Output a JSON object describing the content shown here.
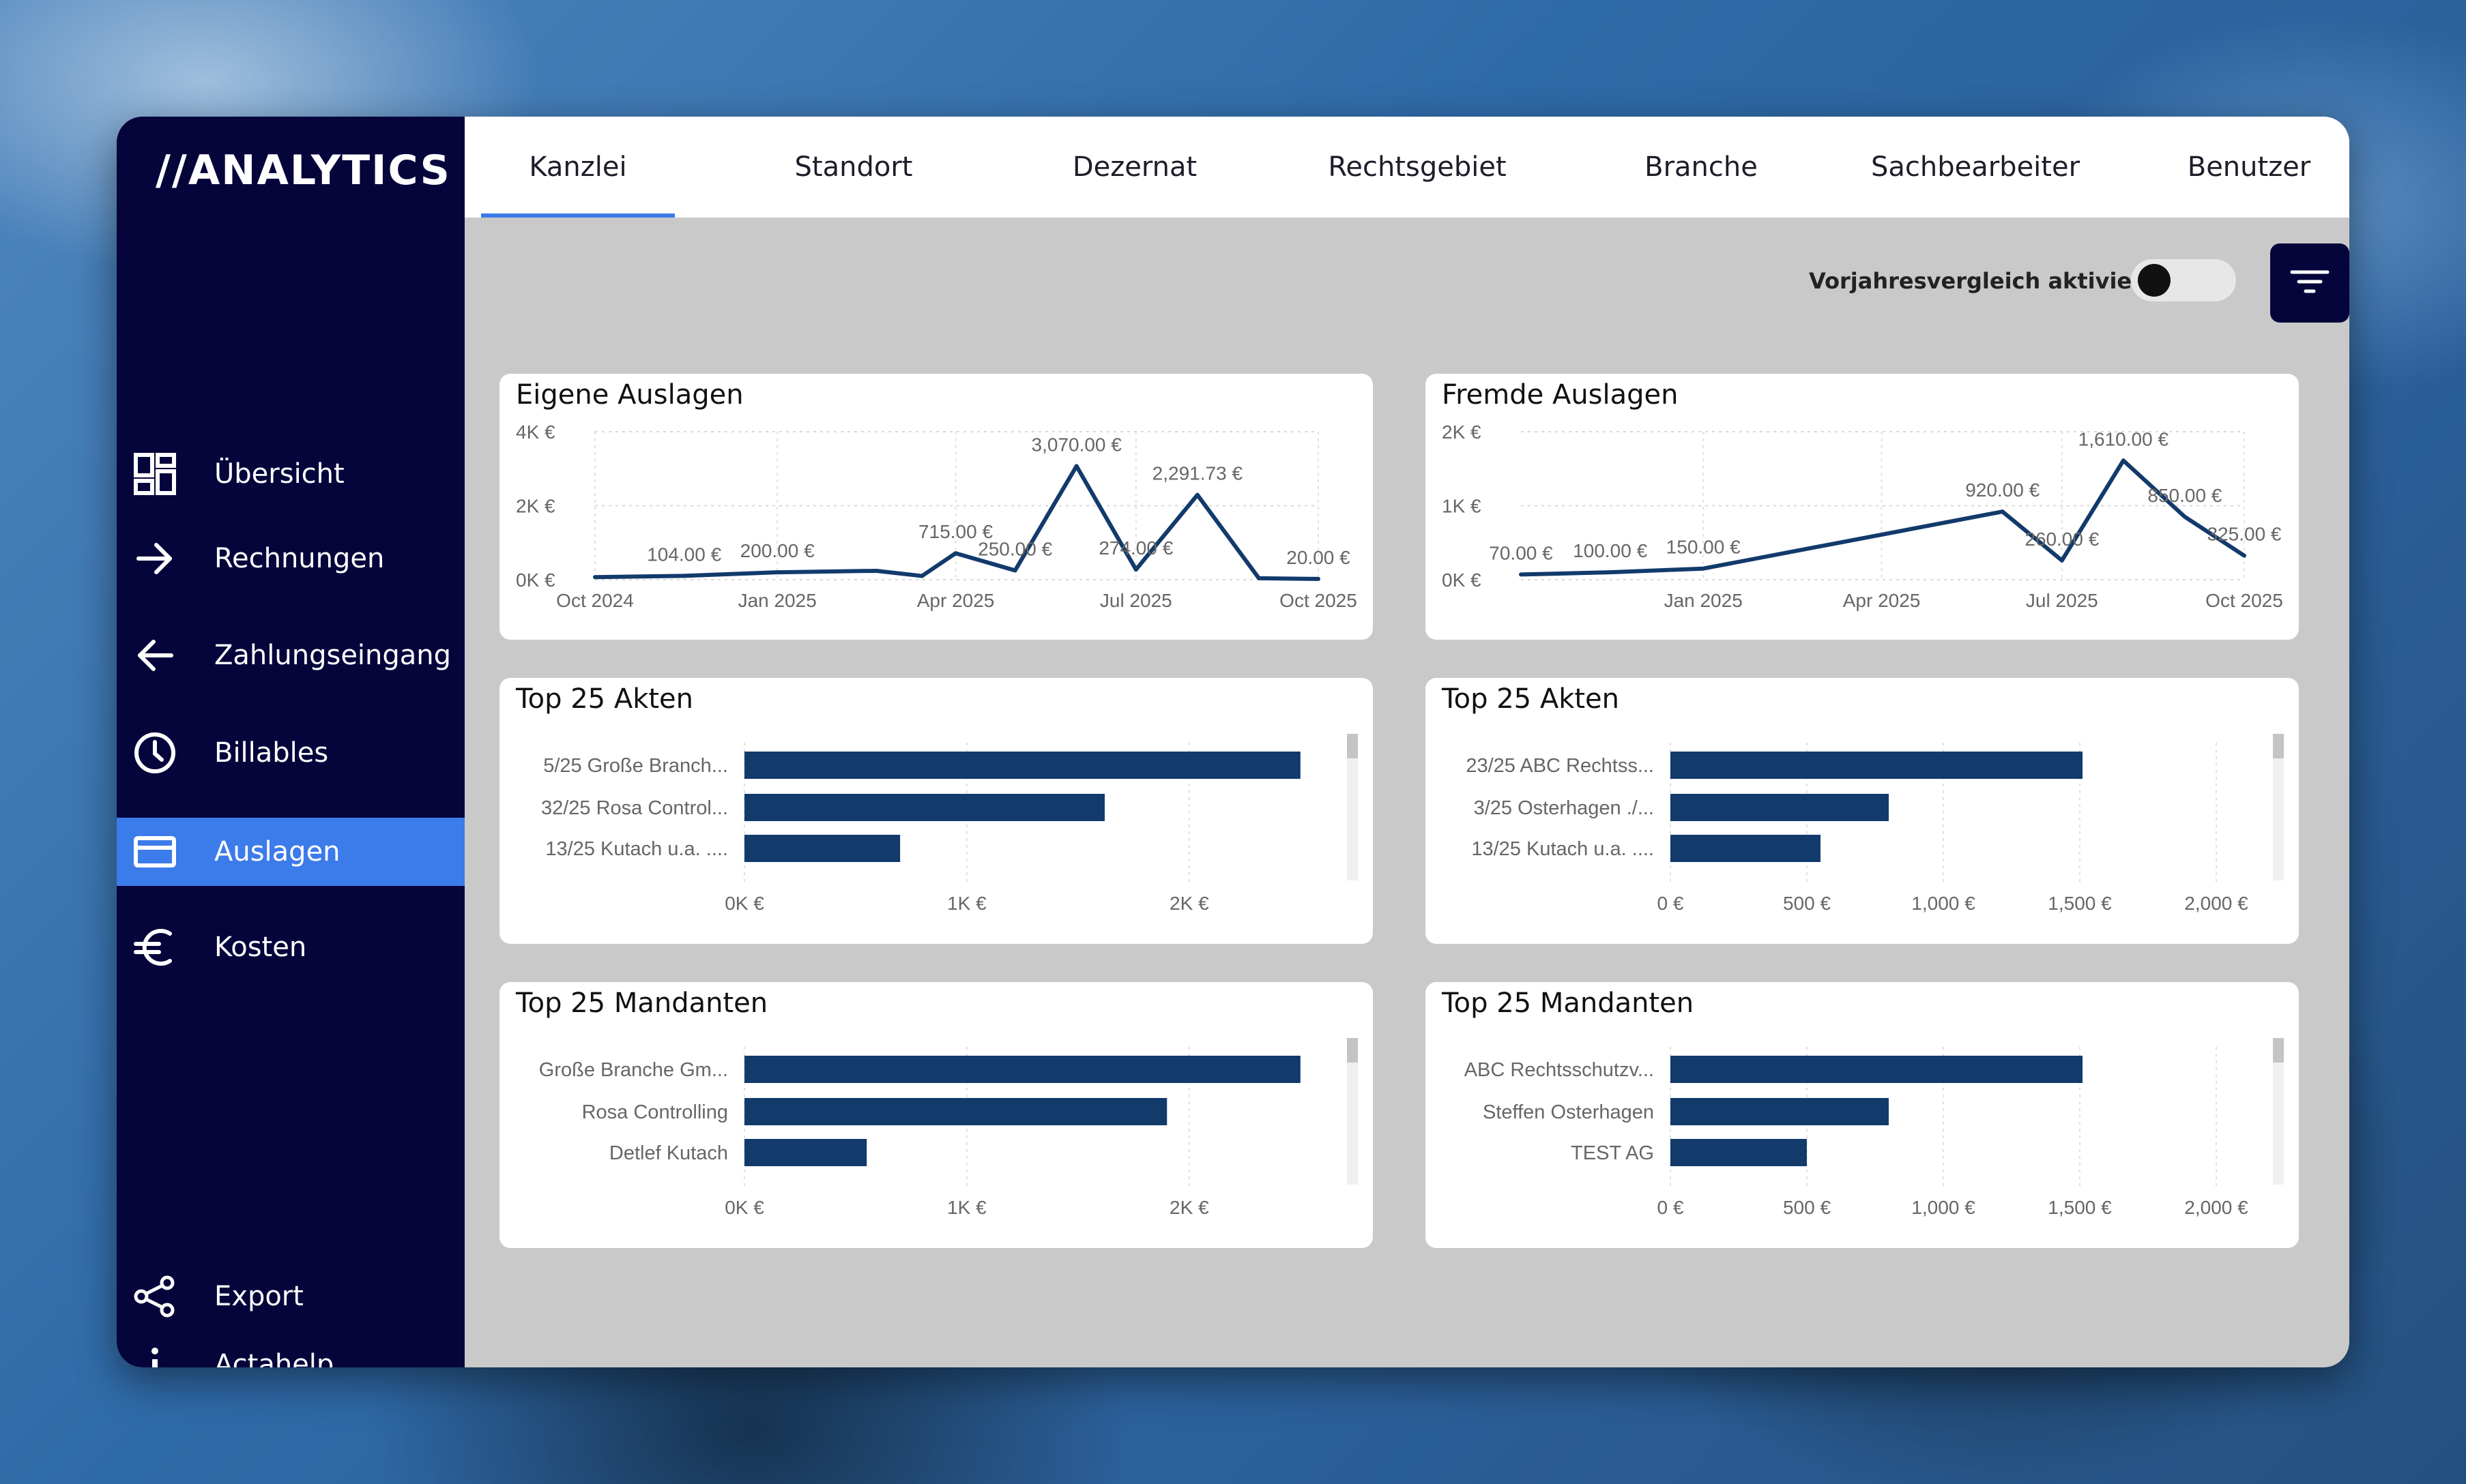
{
  "app": {
    "logo": "//ANALYTICS"
  },
  "sidebar": {
    "items": [
      {
        "label": "Übersicht",
        "icon": "dashboard-icon"
      },
      {
        "label": "Rechnungen",
        "icon": "arrow-right-icon"
      },
      {
        "label": "Zahlungseingang",
        "icon": "arrow-left-icon"
      },
      {
        "label": "Billables",
        "icon": "clock-icon"
      },
      {
        "label": "Auslagen",
        "icon": "credit-card-icon",
        "active": true
      },
      {
        "label": "Kosten",
        "icon": "euro-icon"
      }
    ],
    "bottom": [
      {
        "label": "Export",
        "icon": "share-icon"
      },
      {
        "label": "Actahelp",
        "icon": "info-icon"
      }
    ]
  },
  "tabs": [
    "Kanzlei",
    "Standort",
    "Dezernat",
    "Rechtsgebiet",
    "Branche",
    "Sachbearbeiter",
    "Benutzer"
  ],
  "active_tab": "Kanzlei",
  "toolbar": {
    "toggle_label": "Vorjahresvergleich aktivieren",
    "toggle_on": false
  },
  "colors": {
    "sidebar": "#06053b",
    "accent": "#3c7bea",
    "series": "#123a6b",
    "panel_bg": "#c9c9c9"
  },
  "chart_data": [
    {
      "type": "line",
      "title": "Eigene Auslagen",
      "x_ticks": [
        "Oct 2024",
        "Jan 2025",
        "Apr 2025",
        "Jul 2025",
        "Oct 2025"
      ],
      "y_ticks": [
        "0K €",
        "2K €",
        "4K €"
      ],
      "ylim": [
        0,
        4000
      ],
      "grid": true,
      "points": [
        {
          "x": "2024-10-01",
          "y": 70,
          "label": ""
        },
        {
          "x": "2024-11-15",
          "y": 104,
          "label": "104.00 €"
        },
        {
          "x": "2025-01-01",
          "y": 200,
          "label": "200.00 €"
        },
        {
          "x": "2025-02-20",
          "y": 240,
          "label": ""
        },
        {
          "x": "2025-03-15",
          "y": 100,
          "label": ""
        },
        {
          "x": "2025-04-01",
          "y": 715,
          "label": "715.00 €"
        },
        {
          "x": "2025-05-01",
          "y": 250,
          "label": "250.00 €"
        },
        {
          "x": "2025-06-01",
          "y": 3070,
          "label": "3,070.00 €"
        },
        {
          "x": "2025-07-01",
          "y": 274,
          "label": "274.00 €"
        },
        {
          "x": "2025-08-01",
          "y": 2291.73,
          "label": "2,291.73 €"
        },
        {
          "x": "2025-09-01",
          "y": 40,
          "label": ""
        },
        {
          "x": "2025-10-01",
          "y": 20,
          "label": "20.00 €"
        }
      ]
    },
    {
      "type": "line",
      "title": "Fremde Auslagen",
      "x_ticks": [
        "Jan 2025",
        "Apr 2025",
        "Jul 2025",
        "Oct 2025"
      ],
      "y_ticks": [
        "0K €",
        "1K €",
        "2K €"
      ],
      "ylim": [
        0,
        2000
      ],
      "grid": true,
      "points": [
        {
          "x": "2024-10-01",
          "y": 70,
          "label": "70.00 €"
        },
        {
          "x": "2024-11-15",
          "y": 100,
          "label": "100.00 €"
        },
        {
          "x": "2025-01-01",
          "y": 150,
          "label": "150.00 €"
        },
        {
          "x": "2025-06-01",
          "y": 920,
          "label": "920.00 €"
        },
        {
          "x": "2025-07-01",
          "y": 260,
          "label": "260.00 €"
        },
        {
          "x": "2025-08-01",
          "y": 1610,
          "label": "1,610.00 €"
        },
        {
          "x": "2025-09-01",
          "y": 850,
          "label": "850.00 €"
        },
        {
          "x": "2025-10-01",
          "y": 325,
          "label": "325.00 €"
        }
      ]
    },
    {
      "type": "bar",
      "orientation": "horizontal",
      "title": "Top 25 Akten",
      "categories": [
        "5/25 Große Branch...",
        "32/25 Rosa Control...",
        "13/25 Kutach u.a. ...."
      ],
      "values": [
        2500,
        1620,
        700
      ],
      "x_ticks": [
        {
          "v": 0,
          "label": "0K €"
        },
        {
          "v": 1000,
          "label": "1K €"
        },
        {
          "v": 2000,
          "label": "2K €"
        }
      ],
      "xlim": [
        0,
        2700
      ]
    },
    {
      "type": "bar",
      "orientation": "horizontal",
      "title": "Top 25 Akten",
      "categories": [
        "23/25 ABC Rechtss...",
        "3/25 Osterhagen ./...",
        "13/25 Kutach u.a. ...."
      ],
      "values": [
        1510,
        800,
        550
      ],
      "x_ticks": [
        {
          "v": 0,
          "label": "0 €"
        },
        {
          "v": 500,
          "label": "500 €"
        },
        {
          "v": 1000,
          "label": "1,000 €"
        },
        {
          "v": 1500,
          "label": "1,500 €"
        },
        {
          "v": 2000,
          "label": "2,000 €"
        }
      ],
      "xlim": [
        0,
        2200
      ]
    },
    {
      "type": "bar",
      "orientation": "horizontal",
      "title": "Top 25 Mandanten",
      "categories": [
        "Große Branche Gm...",
        "Rosa Controlling",
        "Detlef Kutach"
      ],
      "values": [
        2500,
        1900,
        550
      ],
      "x_ticks": [
        {
          "v": 0,
          "label": "0K €"
        },
        {
          "v": 1000,
          "label": "1K €"
        },
        {
          "v": 2000,
          "label": "2K €"
        }
      ],
      "xlim": [
        0,
        2700
      ]
    },
    {
      "type": "bar",
      "orientation": "horizontal",
      "title": "Top 25 Mandanten",
      "categories": [
        "ABC Rechtsschutzv...",
        "Steffen Osterhagen",
        "TEST AG"
      ],
      "values": [
        1510,
        800,
        500
      ],
      "x_ticks": [
        {
          "v": 0,
          "label": "0 €"
        },
        {
          "v": 500,
          "label": "500 €"
        },
        {
          "v": 1000,
          "label": "1,000 €"
        },
        {
          "v": 1500,
          "label": "1,500 €"
        },
        {
          "v": 2000,
          "label": "2,000 €"
        }
      ],
      "xlim": [
        0,
        2200
      ]
    }
  ]
}
